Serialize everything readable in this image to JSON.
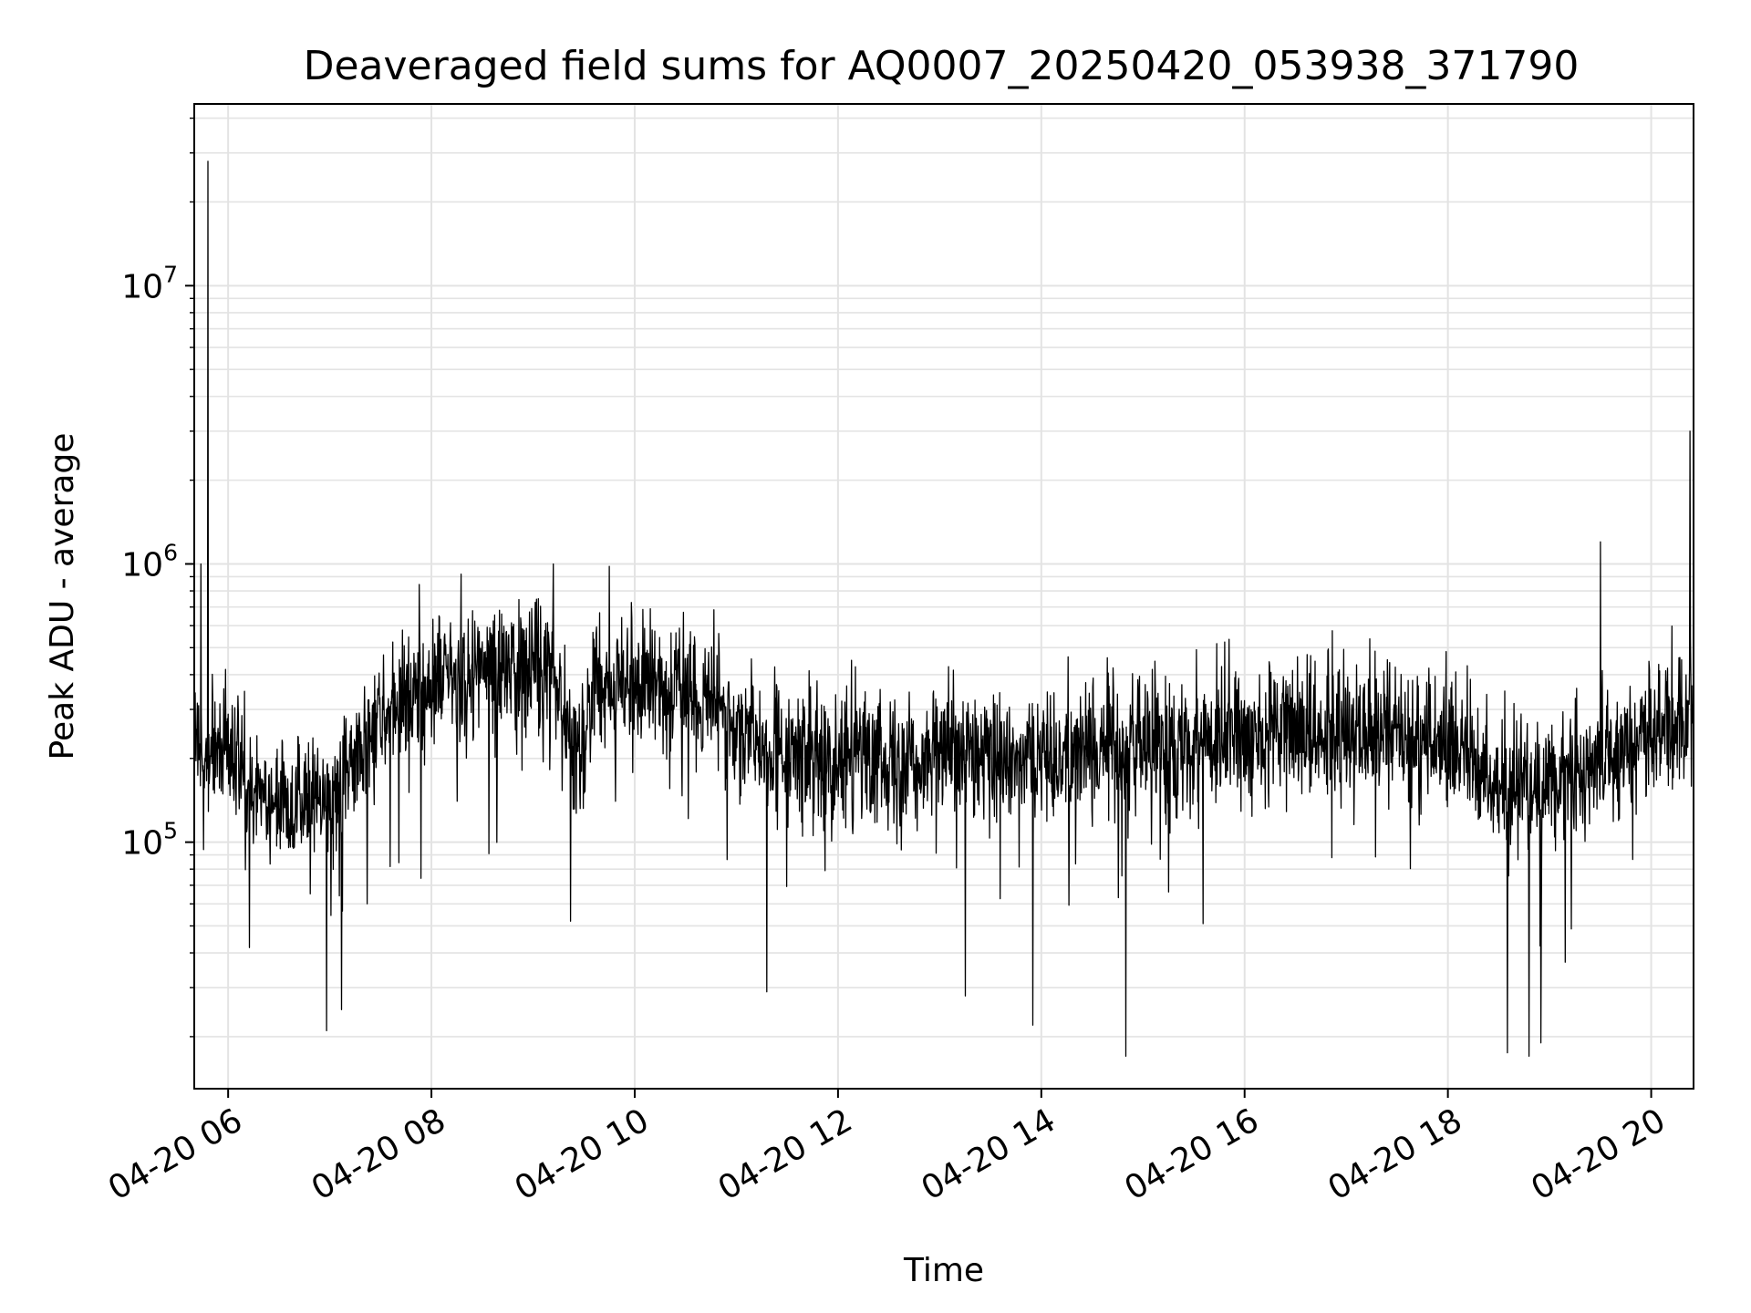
{
  "chart_data": {
    "type": "line",
    "title": "Deaveraged field sums for AQ0007_20250420_053938_371790",
    "xlabel": "Time",
    "ylabel": "Peak ADU - average",
    "yscale": "log",
    "grid": true,
    "x_range": [
      "2025-04-20 05:40",
      "2025-04-20 20:25"
    ],
    "y_range": [
      13000,
      45000000
    ],
    "x_ticks": [
      "04-20 06",
      "04-20 08",
      "04-20 10",
      "04-20 12",
      "04-20 14",
      "04-20 16",
      "04-20 18",
      "04-20 20"
    ],
    "y_ticks": [
      {
        "base": "10",
        "exp": "5",
        "value": 100000
      },
      {
        "base": "10",
        "exp": "6",
        "value": 1000000
      },
      {
        "base": "10",
        "exp": "7",
        "value": 10000000
      }
    ],
    "line_color": "#000000",
    "series": [
      {
        "x": [
          "2025-04-20 05:40",
          "2025-04-20 05:50",
          "2025-04-20 06:00",
          "2025-04-20 06:15",
          "2025-04-20 06:30",
          "2025-04-20 06:45",
          "2025-04-20 07:00",
          "2025-04-20 07:15",
          "2025-04-20 07:30",
          "2025-04-20 07:45",
          "2025-04-20 08:00",
          "2025-04-20 08:30",
          "2025-04-20 09:00",
          "2025-04-20 09:15",
          "2025-04-20 09:25",
          "2025-04-20 09:35",
          "2025-04-20 10:00",
          "2025-04-20 10:30",
          "2025-04-20 10:50",
          "2025-04-20 11:10",
          "2025-04-20 11:30",
          "2025-04-20 12:00",
          "2025-04-20 13:00",
          "2025-04-20 14:00",
          "2025-04-20 15:00",
          "2025-04-20 16:00",
          "2025-04-20 17:00",
          "2025-04-20 18:00",
          "2025-04-20 18:30",
          "2025-04-20 19:00",
          "2025-04-20 19:30",
          "2025-04-20 20:00",
          "2025-04-20 20:25"
        ],
        "y": [
          200000,
          220000,
          210000,
          170000,
          140000,
          140000,
          150000,
          200000,
          280000,
          330000,
          370000,
          420000,
          440000,
          400000,
          200000,
          330000,
          380000,
          340000,
          300000,
          230000,
          200000,
          210000,
          200000,
          210000,
          220000,
          240000,
          260000,
          230000,
          160000,
          160000,
          210000,
          260000,
          270000
        ]
      }
    ],
    "spikes": [
      {
        "x": "2025-04-20 05:48",
        "y": 28000000
      },
      {
        "x": "2025-04-20 05:44",
        "y": 1000000
      },
      {
        "x": "2025-04-20 09:12",
        "y": 1000000
      },
      {
        "x": "2025-04-20 09:45",
        "y": 980000
      },
      {
        "x": "2025-04-20 19:30",
        "y": 1200000
      },
      {
        "x": "2025-04-20 20:23",
        "y": 3000000
      },
      {
        "x": "2025-04-20 06:58",
        "y": 21000
      },
      {
        "x": "2025-04-20 07:07",
        "y": 25000
      },
      {
        "x": "2025-04-20 13:55",
        "y": 22000
      },
      {
        "x": "2025-04-20 14:50",
        "y": 17000
      },
      {
        "x": "2025-04-20 18:35",
        "y": 17500
      },
      {
        "x": "2025-04-20 18:48",
        "y": 17000
      },
      {
        "x": "2025-04-20 18:55",
        "y": 19000
      },
      {
        "x": "2025-04-20 09:22",
        "y": 52000
      },
      {
        "x": "2025-04-20 11:18",
        "y": 29000
      },
      {
        "x": "2025-04-20 13:15",
        "y": 28000
      }
    ]
  }
}
